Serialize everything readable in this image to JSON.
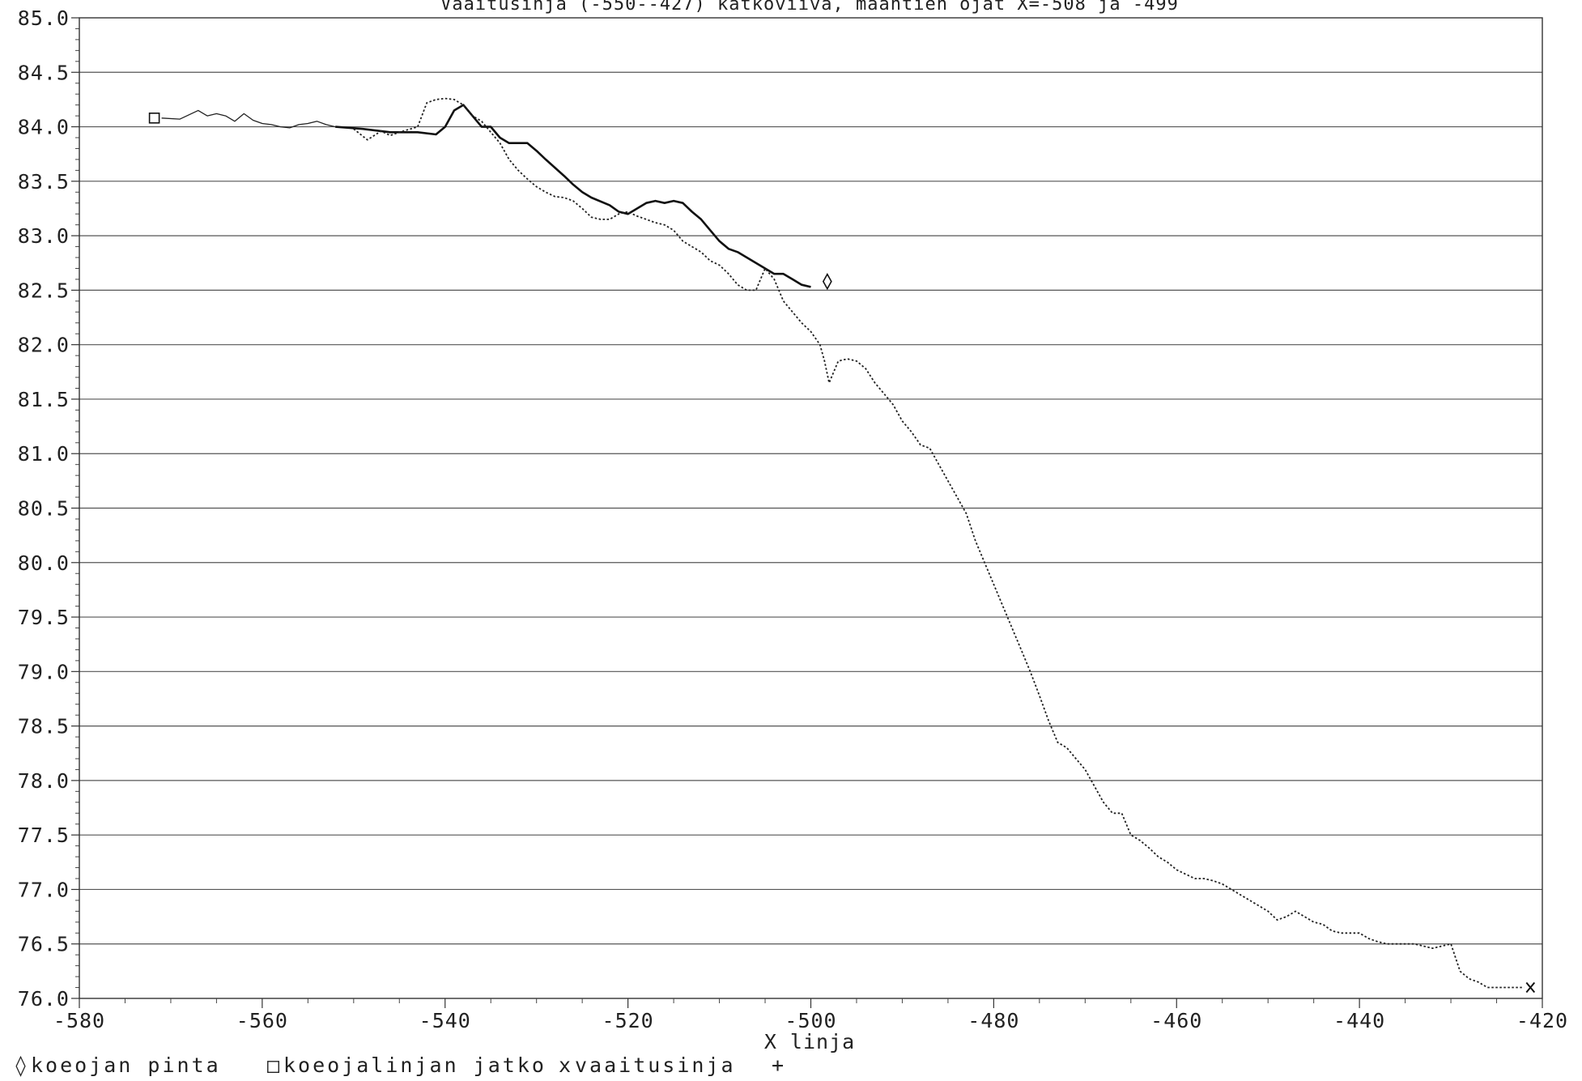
{
  "chart_data": {
    "type": "line",
    "title": "Vaaitusinja (-550--427) katkoviiva, maantien ojat X=-508 ja -499",
    "xlabel": "X linja",
    "ylabel": "",
    "xlim": [
      -580,
      -420
    ],
    "ylim": [
      76.0,
      85.0
    ],
    "x_ticks": [
      "-580",
      "-560",
      "-540",
      "-520",
      "-500",
      "-480",
      "-460",
      "-440",
      "-420"
    ],
    "y_ticks": [
      "76.0",
      "76.5",
      "77.0",
      "77.5",
      "78.0",
      "78.5",
      "79.0",
      "79.5",
      "80.0",
      "80.5",
      "81.0",
      "81.5",
      "82.0",
      "82.5",
      "83.0",
      "83.5",
      "84.0",
      "84.5",
      "85.0"
    ],
    "grid": true,
    "legend_position": "bottom-left",
    "legend": [
      {
        "symbol": "◊",
        "label": "koeojan pinta"
      },
      {
        "symbol": "□",
        "label": "koeojalinjan jatko"
      },
      {
        "symbol": "x",
        "label": "vaaitusinja"
      },
      {
        "symbol": "+",
        "label": ""
      }
    ],
    "series": [
      {
        "name": "koeojan pinta",
        "style": "solid",
        "color": "#111111",
        "end_marker": "◊",
        "marker_point": [
          -498.2,
          82.58
        ],
        "x": [
          -552,
          -549,
          -546,
          -543,
          -541,
          -540,
          -539,
          -538,
          -537,
          -536,
          -535,
          -534,
          -533,
          -532,
          -531,
          -530,
          -529,
          -527,
          -526,
          -525,
          -524,
          -522,
          -521,
          -520,
          -519,
          -518,
          -517,
          -516,
          -515,
          -514,
          -513,
          -512,
          -511,
          -510,
          -509,
          -508,
          -507,
          -506,
          -505,
          -504,
          -503,
          -502,
          -501,
          -500
        ],
        "y": [
          84.0,
          83.98,
          83.95,
          83.95,
          83.93,
          84.0,
          84.15,
          84.2,
          84.1,
          84.0,
          84.0,
          83.9,
          83.85,
          83.85,
          83.85,
          83.78,
          83.7,
          83.55,
          83.47,
          83.4,
          83.35,
          83.28,
          83.22,
          83.2,
          83.25,
          83.3,
          83.32,
          83.3,
          83.32,
          83.3,
          83.22,
          83.15,
          83.05,
          82.95,
          82.88,
          82.85,
          82.8,
          82.75,
          82.7,
          82.65,
          82.65,
          82.6,
          82.55,
          82.53
        ]
      },
      {
        "name": "koeojalinjan jatko",
        "style": "thin",
        "color": "#222222",
        "start_marker": "□",
        "marker_point": [
          -571.8,
          84.08
        ],
        "x": [
          -571,
          -569,
          -567,
          -566,
          -565,
          -564,
          -563,
          -562,
          -561,
          -560,
          -559,
          -558,
          -557,
          -556,
          -555,
          -554,
          -553,
          -552
        ],
        "y": [
          84.08,
          84.07,
          84.15,
          84.1,
          84.12,
          84.1,
          84.05,
          84.12,
          84.06,
          84.03,
          84.02,
          84.0,
          83.99,
          84.02,
          84.03,
          84.05,
          84.02,
          84.0
        ]
      },
      {
        "name": "vaaitusinja",
        "style": "dotted",
        "color": "#222222",
        "end_marker": "x",
        "marker_point": [
          -421.3,
          76.1
        ],
        "x": [
          -550,
          -548.5,
          -547,
          -546,
          -545,
          -543,
          -542,
          -541,
          -540,
          -539,
          -538,
          -537,
          -536,
          -535,
          -534,
          -533,
          -532,
          -531,
          -530,
          -529,
          -528,
          -527,
          -526,
          -525,
          -524,
          -523,
          -522,
          -521,
          -520,
          -519,
          -518,
          -517,
          -516,
          -515,
          -514,
          -513,
          -512,
          -511,
          -510,
          -509,
          -508,
          -507,
          -506,
          -505,
          -504,
          -503,
          -502,
          -501,
          -500,
          -499,
          -498.5,
          -498,
          -497,
          -496,
          -495,
          -494,
          -493,
          -492,
          -491,
          -490,
          -489,
          -488,
          -487,
          -486,
          -485,
          -484,
          -483,
          -482,
          -481,
          -480,
          -479,
          -478,
          -477,
          -476,
          -475,
          -474,
          -473,
          -472,
          -471,
          -470,
          -469,
          -468,
          -467,
          -466,
          -465,
          -464,
          -463,
          -462,
          -461,
          -460,
          -459,
          -458,
          -457,
          -456,
          -455,
          -454,
          -453,
          -452,
          -451,
          -450,
          -449,
          -448,
          -447,
          -446,
          -445,
          -444,
          -443,
          -442,
          -441,
          -440,
          -439,
          -438,
          -437,
          -436,
          -435,
          -434,
          -433,
          -432,
          -431,
          -430,
          -429,
          -428,
          -427,
          -426,
          -425,
          -424,
          -423,
          -422
        ],
        "y": [
          83.98,
          83.88,
          83.96,
          83.92,
          83.95,
          84.0,
          84.22,
          84.25,
          84.26,
          84.25,
          84.2,
          84.1,
          84.05,
          83.95,
          83.85,
          83.7,
          83.6,
          83.52,
          83.45,
          83.4,
          83.36,
          83.35,
          83.32,
          83.25,
          83.17,
          83.15,
          83.15,
          83.2,
          83.22,
          83.18,
          83.15,
          83.12,
          83.1,
          83.05,
          82.95,
          82.9,
          82.85,
          82.77,
          82.73,
          82.65,
          82.55,
          82.5,
          82.5,
          82.7,
          82.6,
          82.4,
          82.3,
          82.2,
          82.12,
          82.0,
          81.85,
          81.65,
          81.85,
          81.87,
          81.85,
          81.78,
          81.65,
          81.55,
          81.45,
          81.3,
          81.2,
          81.08,
          81.05,
          80.9,
          80.75,
          80.6,
          80.45,
          80.2,
          80.0,
          79.8,
          79.6,
          79.4,
          79.2,
          79.0,
          78.78,
          78.55,
          78.35,
          78.3,
          78.2,
          78.1,
          77.95,
          77.8,
          77.7,
          77.7,
          77.5,
          77.45,
          77.38,
          77.3,
          77.25,
          77.18,
          77.14,
          77.1,
          77.1,
          77.08,
          77.05,
          77.0,
          76.95,
          76.9,
          76.85,
          76.8,
          76.72,
          76.75,
          76.8,
          76.75,
          76.7,
          76.68,
          76.62,
          76.6,
          76.6,
          76.6,
          76.55,
          76.52,
          76.5,
          76.5,
          76.5,
          76.5,
          76.48,
          76.46,
          76.48,
          76.5,
          76.25,
          76.18,
          76.15,
          76.1,
          76.1,
          76.1,
          76.1,
          76.1
        ]
      }
    ]
  }
}
